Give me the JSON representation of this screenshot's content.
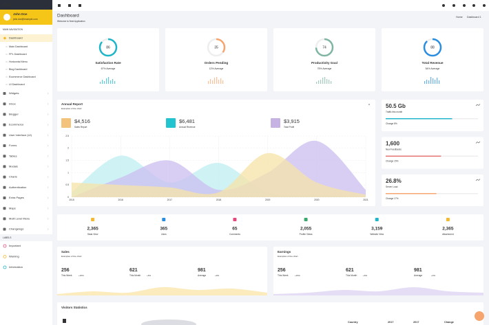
{
  "topbar": {
    "brand": "Nest"
  },
  "user": {
    "name": "John Doe",
    "email": "john.doe@example.com"
  },
  "sidebar": {
    "section": "MAIN NAVIGATION",
    "active": "Dashboard",
    "submenu": [
      "Main Dashboard",
      "FPL Dashboard",
      "Horizontal Menu",
      "Blog Dashboard",
      "Ecommerce Dashboard",
      "UI Dashboard"
    ],
    "items": [
      "Widgets",
      "Inbox",
      "Blogger",
      "Ecommerce",
      "User Interface (UI)",
      "Forms",
      "Tables",
      "Modals",
      "Charts",
      "Authentication",
      "Extra Pages",
      "Maps",
      "Multi Level Menu",
      "Changelogs"
    ],
    "labels_title": "LABELS",
    "labels": [
      "Important",
      "Warning",
      "Information"
    ]
  },
  "header": {
    "title": "Dashboard",
    "subtitle": "Welcome to Nest Application",
    "breadcrumb": [
      "Home",
      "Dashboard 1"
    ]
  },
  "kpis": [
    {
      "title": "Satisfaction Rate",
      "value": 86,
      "note": "67% Average",
      "color": "#1fb5c9",
      "spark": [
        3,
        6,
        4,
        8,
        10,
        5,
        7,
        4
      ]
    },
    {
      "title": "Orders Pending",
      "value": 35,
      "note": "12% Average",
      "color": "#f6a56f",
      "spark": [
        4,
        7,
        5,
        9,
        10,
        6,
        8,
        5
      ]
    },
    {
      "title": "Productivity Goal",
      "value": 74,
      "note": "75% Average",
      "color": "#7fb5a3",
      "spark": [
        3,
        5,
        6,
        9,
        10,
        7,
        6,
        4
      ]
    },
    {
      "title": "Total Revenue",
      "value": 88,
      "note": "54% Average",
      "color": "#2a8ee0",
      "spark": [
        4,
        6,
        5,
        10,
        8,
        6,
        9,
        5
      ]
    }
  ],
  "annual_report": {
    "title": "Annual Report",
    "subtitle": "Examples of line chart",
    "summary": [
      {
        "value": "$4,516",
        "label": "Sales Report",
        "color": "#f3c37b"
      },
      {
        "value": "$6,481",
        "label": "Annual Revenue",
        "color": "#22c4cf"
      },
      {
        "value": "$3,915",
        "label": "Total Profit",
        "color": "#c6b3e4"
      }
    ],
    "chart": {
      "type": "area",
      "categories": [
        "2015",
        "2016",
        "2017",
        "2018",
        "2019",
        "2020",
        "2021"
      ],
      "series": [
        {
          "color": "#bfeff2",
          "values": [
            0.2,
            1.7,
            0.6,
            1.4,
            0.2,
            0.1,
            0
          ]
        },
        {
          "color": "#cbbdf0",
          "values": [
            0,
            0.8,
            1.5,
            0.3,
            1.0,
            2.3,
            0.3
          ]
        },
        {
          "color": "#f7e3a8",
          "values": [
            0.6,
            0.5,
            0.4,
            0.2,
            1.8,
            0.6,
            0.1
          ]
        }
      ],
      "ylim": [
        0,
        2.5
      ],
      "yticks": [
        0,
        0.5,
        1,
        1.5,
        2,
        2.5
      ],
      "grid": true
    }
  },
  "stat_cards": [
    {
      "value": "50.5 Gb",
      "label": "Traffic this month",
      "change": "Change 8%",
      "progress": 72,
      "color": "#1fb5c9"
    },
    {
      "value": "1,600",
      "label": "New Feedbacks",
      "change": "Change 15%",
      "progress": 60,
      "color": "#e57373"
    },
    {
      "value": "26.8%",
      "label": "Server Load",
      "change": "Change 17%",
      "progress": 55,
      "color": "#f6a56f"
    }
  ],
  "counters": [
    {
      "value": "2,365",
      "label": "Stats View",
      "color": "#f5b82e"
    },
    {
      "value": "365",
      "label": "Likes",
      "color": "#2a8ee0"
    },
    {
      "value": "65",
      "label": "Comments",
      "color": "#e5487a"
    },
    {
      "value": "2,055",
      "label": "Profile Views",
      "color": "#3aa76d"
    },
    {
      "value": "3,159",
      "label": "Website View",
      "color": "#1fb5c9"
    },
    {
      "value": "2,365",
      "label": "Attachment",
      "color": "#f5b82e"
    }
  ],
  "panels": [
    {
      "title": "Sales",
      "subtitle": "Examples of line chart",
      "color": "#fbe6ad",
      "trend": [
        1,
        3,
        2,
        6,
        4,
        5,
        2
      ],
      "stats": [
        {
          "value": "256",
          "label": "This Week",
          "change": "+15%"
        },
        {
          "value": "621",
          "label": "This Month",
          "change": "+6%"
        },
        {
          "value": "981",
          "label": "Average",
          "change": "+9%"
        }
      ]
    },
    {
      "title": "Earnings",
      "subtitle": "Examples of line chart",
      "color": "#ddd5f3",
      "trend": [
        1,
        2,
        4,
        3,
        6,
        3,
        2
      ],
      "stats": [
        {
          "value": "256",
          "label": "This Week",
          "change": "+15%"
        },
        {
          "value": "621",
          "label": "This Month",
          "change": "+6%"
        },
        {
          "value": "981",
          "label": "Average",
          "change": "+4%"
        }
      ]
    }
  ],
  "visitors": {
    "title": "Visitors Statistics",
    "columns": [
      "Country",
      "2017",
      "2017",
      "Change"
    ]
  }
}
